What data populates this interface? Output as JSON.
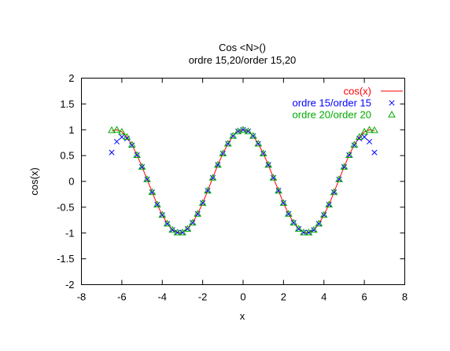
{
  "chart_data": {
    "type": "line",
    "title": "Cos <N>()",
    "subtitle": "ordre 15,20/order 15,20",
    "xlabel": "x",
    "ylabel": "cos(x)",
    "xlim": [
      -8,
      8
    ],
    "ylim": [
      -2,
      2
    ],
    "xticks": [
      -8,
      -6,
      -4,
      -2,
      0,
      2,
      4,
      6,
      8
    ],
    "yticks": [
      -2,
      -1.5,
      -1,
      -0.5,
      0,
      0.5,
      1,
      1.5,
      2
    ],
    "xtick_labels": [
      "-8",
      "-6",
      "-4",
      "-2",
      "0",
      "2",
      "4",
      "6",
      "8"
    ],
    "ytick_labels": [
      "-2",
      "-1.5",
      "-1",
      "-0.5",
      "0",
      "0.5",
      "1",
      "1.5",
      "2"
    ],
    "grid": false,
    "legend_position": "top-right",
    "series": [
      {
        "name": "cos(x)",
        "style": "line",
        "color": "#ff0000",
        "x": [
          -6.5,
          -6.25,
          -6.0,
          -5.75,
          -5.5,
          -5.25,
          -5.0,
          -4.75,
          -4.5,
          -4.25,
          -4.0,
          -3.75,
          -3.5,
          -3.25,
          -3.0,
          -2.75,
          -2.5,
          -2.25,
          -2.0,
          -1.75,
          -1.5,
          -1.25,
          -1.0,
          -0.75,
          -0.5,
          -0.25,
          0.0,
          0.25,
          0.5,
          0.75,
          1.0,
          1.25,
          1.5,
          1.75,
          2.0,
          2.25,
          2.5,
          2.75,
          3.0,
          3.25,
          3.5,
          3.75,
          4.0,
          4.25,
          4.5,
          4.75,
          5.0,
          5.25,
          5.5,
          5.75,
          6.0,
          6.25,
          6.5
        ],
        "y": [
          0.98,
          1.0,
          0.96,
          0.86,
          0.71,
          0.51,
          0.28,
          0.04,
          -0.21,
          -0.45,
          -0.65,
          -0.82,
          -0.94,
          -0.99,
          -0.99,
          -0.92,
          -0.8,
          -0.63,
          -0.42,
          -0.18,
          0.07,
          0.32,
          0.54,
          0.73,
          0.88,
          0.97,
          1.0,
          0.97,
          0.88,
          0.73,
          0.54,
          0.32,
          0.07,
          -0.18,
          -0.42,
          -0.63,
          -0.8,
          -0.92,
          -0.99,
          -0.99,
          -0.94,
          -0.82,
          -0.65,
          -0.45,
          -0.21,
          0.04,
          0.28,
          0.51,
          0.71,
          0.86,
          0.96,
          1.0,
          0.98
        ]
      },
      {
        "name": "ordre 15/order 15",
        "style": "marker",
        "marker": "x",
        "color": "#0000ff",
        "x": [
          -6.5,
          -6.25,
          -6.0,
          -5.75,
          -5.5,
          -5.25,
          -5.0,
          -4.75,
          -4.5,
          -4.25,
          -4.0,
          -3.75,
          -3.5,
          -3.25,
          -3.0,
          -2.75,
          -2.5,
          -2.25,
          -2.0,
          -1.75,
          -1.5,
          -1.25,
          -1.0,
          -0.75,
          -0.5,
          -0.25,
          0.0,
          0.25,
          0.5,
          0.75,
          1.0,
          1.25,
          1.5,
          1.75,
          2.0,
          2.25,
          2.5,
          2.75,
          3.0,
          3.25,
          3.5,
          3.75,
          4.0,
          4.25,
          4.5,
          4.75,
          5.0,
          5.25,
          5.5,
          5.75,
          6.0,
          6.25,
          6.5
        ],
        "y": [
          0.56,
          0.77,
          0.86,
          0.83,
          0.7,
          0.51,
          0.28,
          0.04,
          -0.21,
          -0.45,
          -0.65,
          -0.82,
          -0.94,
          -0.99,
          -0.99,
          -0.92,
          -0.8,
          -0.63,
          -0.42,
          -0.18,
          0.07,
          0.32,
          0.54,
          0.73,
          0.88,
          0.97,
          1.0,
          0.97,
          0.88,
          0.73,
          0.54,
          0.32,
          0.07,
          -0.18,
          -0.42,
          -0.63,
          -0.8,
          -0.92,
          -0.99,
          -0.99,
          -0.94,
          -0.82,
          -0.65,
          -0.45,
          -0.21,
          0.04,
          0.28,
          0.51,
          0.7,
          0.83,
          0.86,
          0.77,
          0.56
        ]
      },
      {
        "name": "ordre 20/order 20",
        "style": "marker",
        "marker": "triangle",
        "color": "#00aa00",
        "x": [
          -6.5,
          -6.25,
          -6.0,
          -5.75,
          -5.5,
          -5.25,
          -5.0,
          -4.75,
          -4.5,
          -4.25,
          -4.0,
          -3.75,
          -3.5,
          -3.25,
          -3.0,
          -2.75,
          -2.5,
          -2.25,
          -2.0,
          -1.75,
          -1.5,
          -1.25,
          -1.0,
          -0.75,
          -0.5,
          -0.25,
          0.0,
          0.25,
          0.5,
          0.75,
          1.0,
          1.25,
          1.5,
          1.75,
          2.0,
          2.25,
          2.5,
          2.75,
          3.0,
          3.25,
          3.5,
          3.75,
          4.0,
          4.25,
          4.5,
          4.75,
          5.0,
          5.25,
          5.5,
          5.75,
          6.0,
          6.25,
          6.5
        ],
        "y": [
          0.99,
          1.0,
          0.96,
          0.86,
          0.71,
          0.51,
          0.28,
          0.04,
          -0.21,
          -0.45,
          -0.65,
          -0.82,
          -0.94,
          -0.99,
          -0.99,
          -0.92,
          -0.8,
          -0.63,
          -0.42,
          -0.18,
          0.07,
          0.32,
          0.54,
          0.73,
          0.88,
          0.97,
          1.0,
          0.97,
          0.88,
          0.73,
          0.54,
          0.32,
          0.07,
          -0.18,
          -0.42,
          -0.63,
          -0.8,
          -0.92,
          -0.99,
          -0.99,
          -0.94,
          -0.82,
          -0.65,
          -0.45,
          -0.21,
          0.04,
          0.28,
          0.51,
          0.71,
          0.86,
          0.96,
          1.0,
          0.99
        ]
      }
    ]
  }
}
